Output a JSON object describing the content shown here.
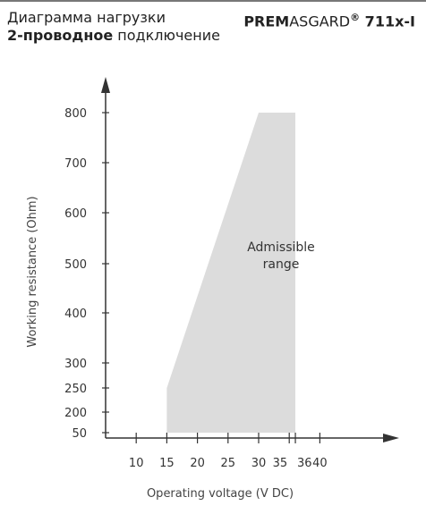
{
  "header": {
    "title": "Диаграмма нагрузки",
    "subtitle_bold": "2-проводное",
    "subtitle_rest": " подключение",
    "product_bold_1": "PREM",
    "product_normal": "ASGARD",
    "product_reg": "®",
    "product_bold_2": " 711x-I"
  },
  "colors": {
    "region_fill": "#dcdcdc",
    "axis": "#333333",
    "rule": "#777777"
  },
  "chart_data": {
    "type": "area",
    "title": "",
    "xlabel": "Operating voltage  (V DC)",
    "ylabel": "Working resistance  (Ohm)",
    "x_ticks": [
      10,
      15,
      20,
      25,
      30,
      35,
      36,
      40
    ],
    "y_ticks": [
      50,
      200,
      250,
      300,
      400,
      500,
      600,
      700,
      800
    ],
    "region": {
      "label_line1": "Admissible",
      "label_line2": "range",
      "points": [
        {
          "x": 15,
          "y": 50
        },
        {
          "x": 15,
          "y": 250
        },
        {
          "x": 30,
          "y": 800
        },
        {
          "x": 36,
          "y": 800
        },
        {
          "x": 36,
          "y": 50
        }
      ]
    }
  }
}
